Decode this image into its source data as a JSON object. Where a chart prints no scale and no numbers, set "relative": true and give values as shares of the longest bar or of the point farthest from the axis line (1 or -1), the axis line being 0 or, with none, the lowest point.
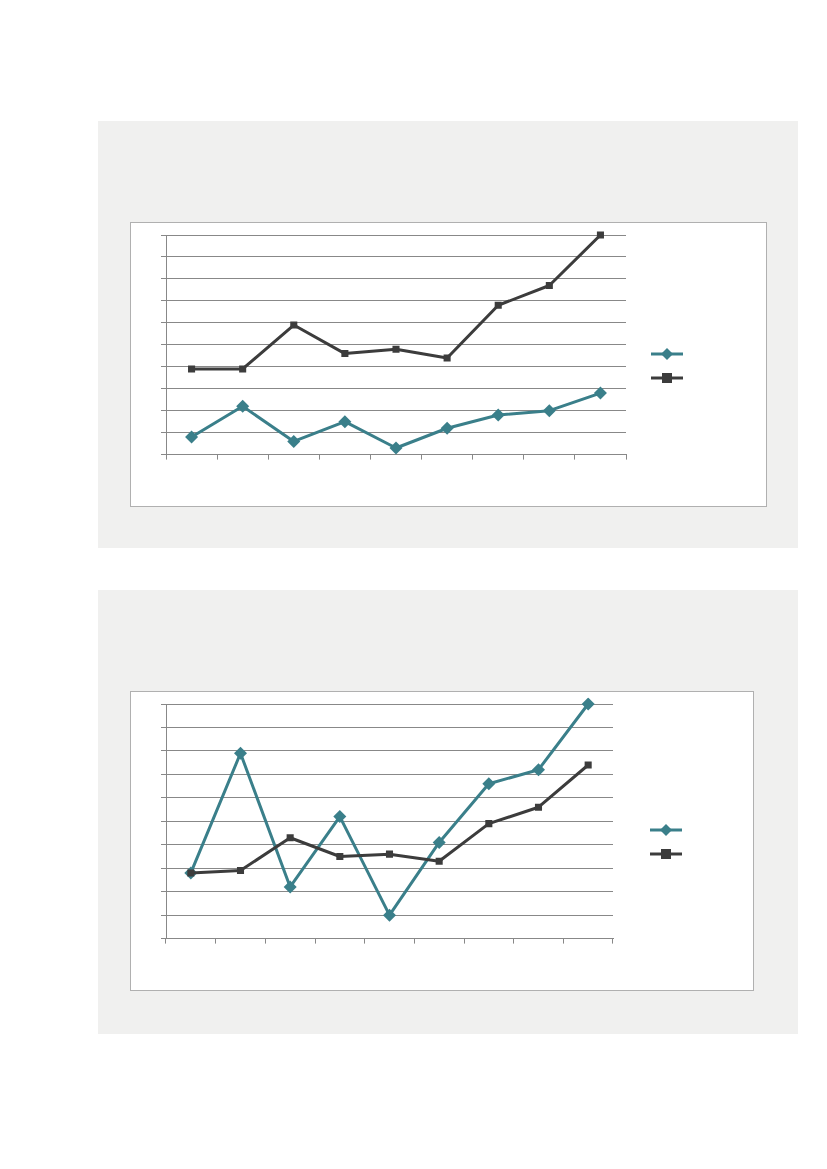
{
  "chart_data": [
    {
      "type": "line",
      "relative": true,
      "grid": "y",
      "categories": [
        null,
        null,
        null,
        null,
        null,
        null,
        null,
        null,
        null
      ],
      "series": [
        {
          "color": "#3a7f8a",
          "marker": "diamond",
          "values": [
            0.08,
            0.22,
            0.06,
            0.15,
            0.03,
            0.12,
            0.18,
            0.2,
            0.28
          ]
        },
        {
          "color": "#3c3c3c",
          "marker": "square",
          "values": [
            0.39,
            0.39,
            0.59,
            0.46,
            0.48,
            0.44,
            0.68,
            0.77,
            1
          ]
        }
      ]
    },
    {
      "type": "line",
      "relative": true,
      "grid": "y",
      "categories": [
        null,
        null,
        null,
        null,
        null,
        null,
        null,
        null,
        null
      ],
      "series": [
        {
          "color": "#3a7f8a",
          "marker": "diamond",
          "values": [
            0.28,
            0.79,
            0.22,
            0.52,
            0.1,
            0.41,
            0.66,
            0.72,
            1
          ]
        },
        {
          "color": "#3c3c3c",
          "marker": "square",
          "values": [
            0.28,
            0.29,
            0.43,
            0.35,
            0.36,
            0.33,
            0.49,
            0.56,
            0.74
          ]
        }
      ]
    }
  ]
}
